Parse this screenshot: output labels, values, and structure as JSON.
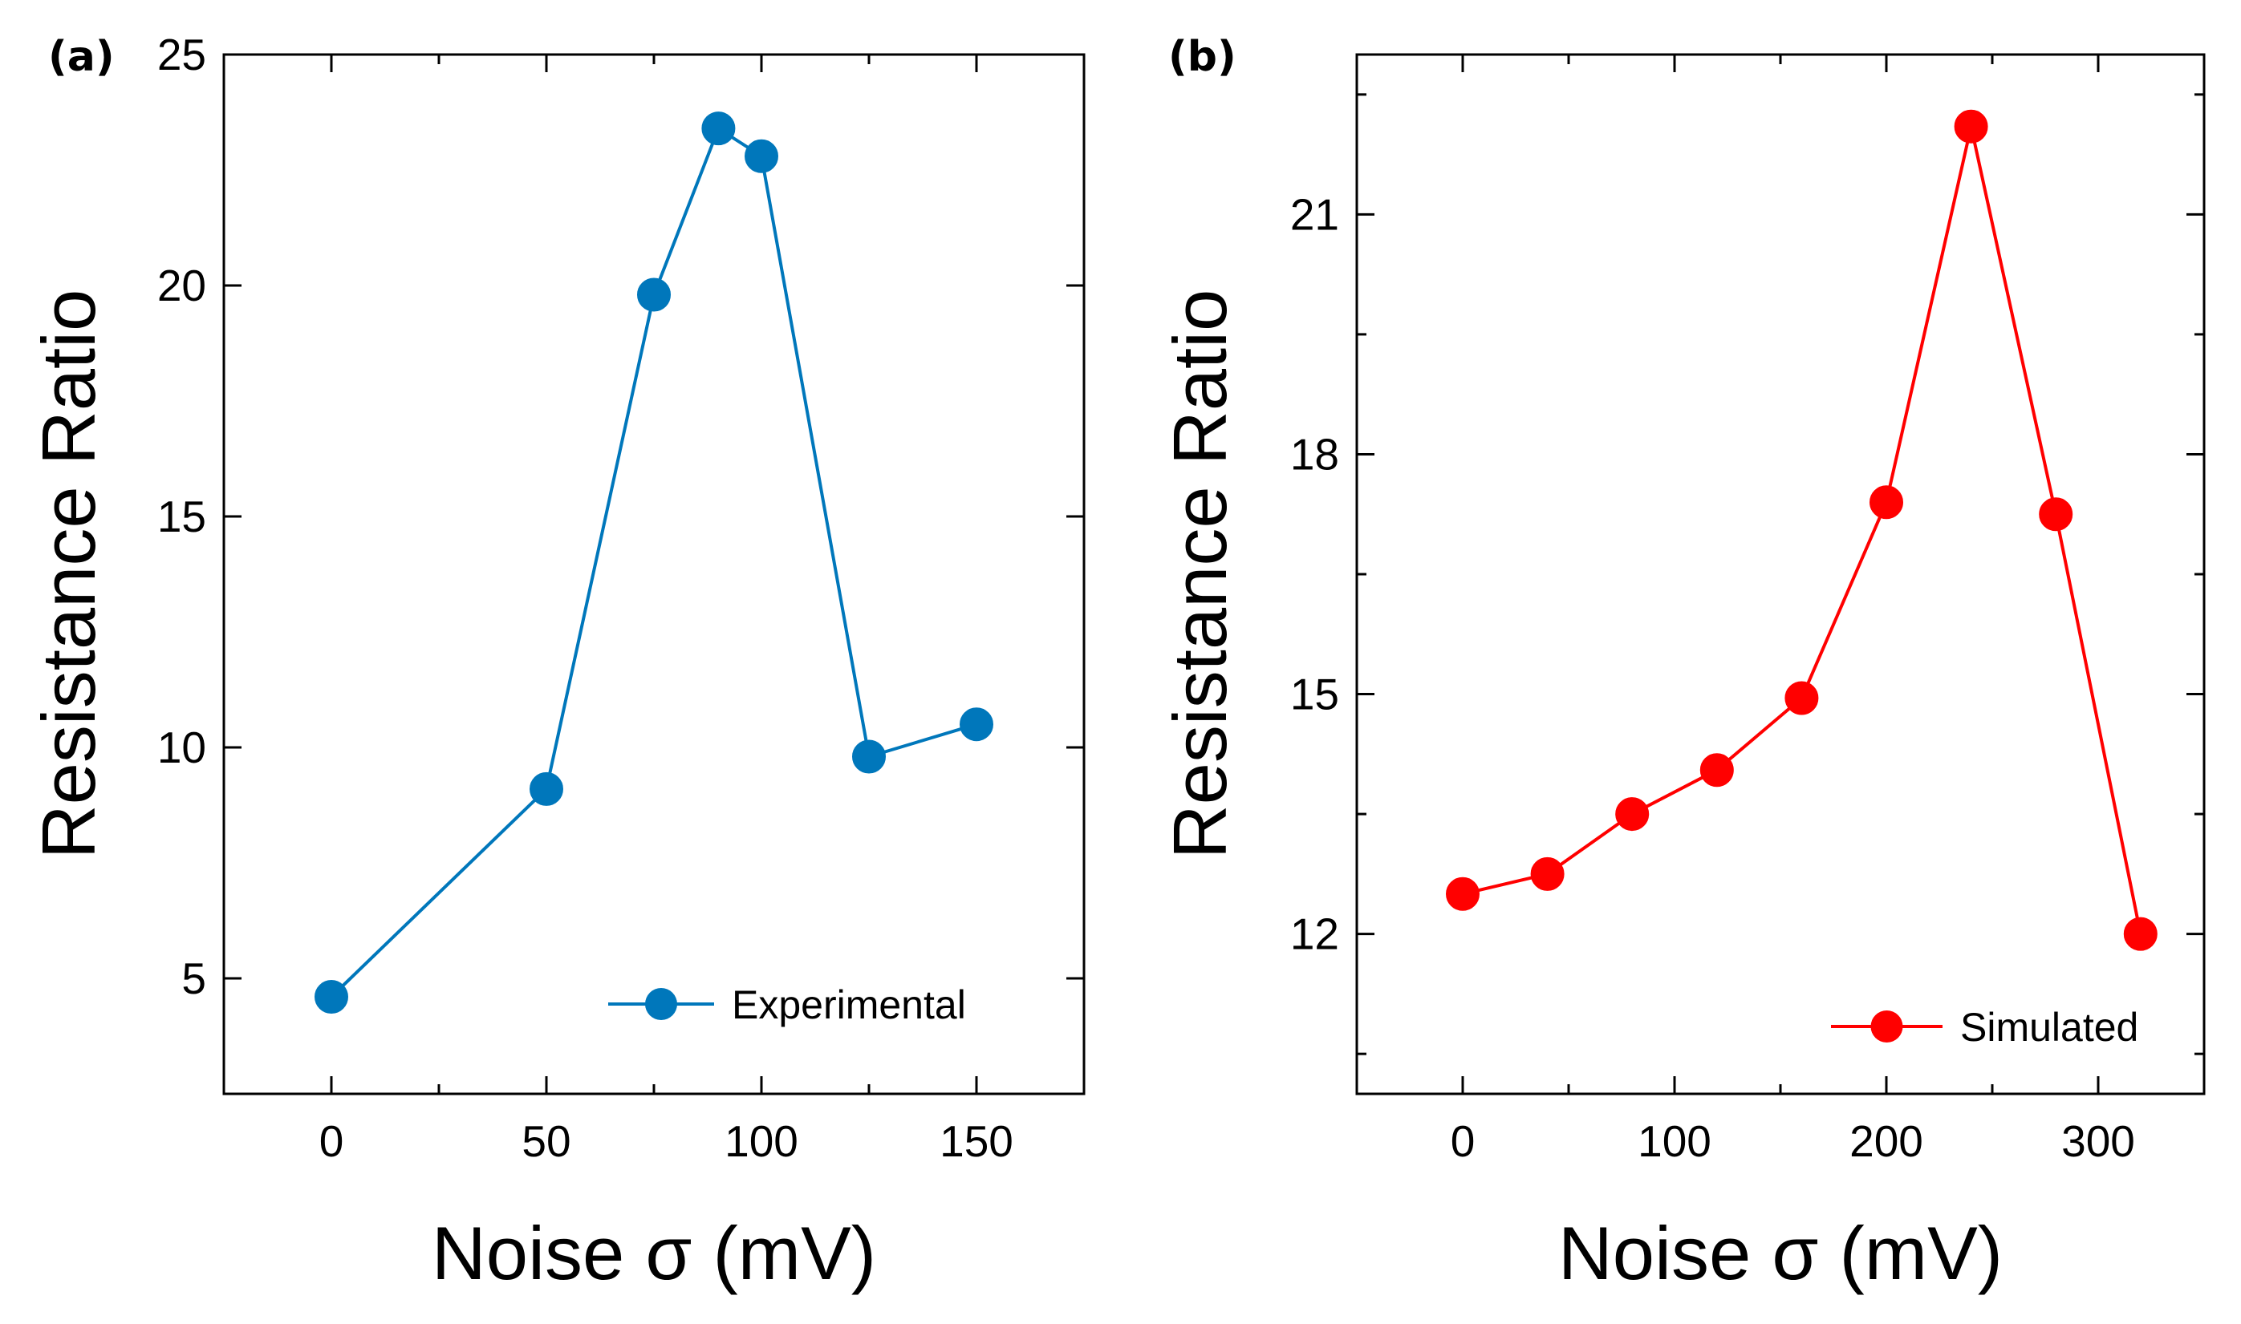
{
  "figure": {
    "panels": [
      "(a)",
      "(b)"
    ]
  },
  "chart_data": [
    {
      "panel_label": "(a)",
      "type": "line",
      "title": "",
      "xlabel": "Noise σ (mV)",
      "ylabel": "Resistance Ratio",
      "xlim": [
        -25,
        175
      ],
      "ylim": [
        2.5,
        25
      ],
      "xticks": [
        0,
        50,
        100,
        150
      ],
      "yticks": [
        5,
        10,
        15,
        20,
        25
      ],
      "xtick_labels": [
        "0",
        "50",
        "100",
        "150"
      ],
      "ytick_labels": [
        "5",
        "10",
        "15",
        "20",
        "25"
      ],
      "grid": false,
      "legend": "bottom-right",
      "color": "#0077bb",
      "series": [
        {
          "name": "Experimental",
          "x": [
            0,
            50,
            75,
            90,
            100,
            125,
            150
          ],
          "y": [
            4.6,
            9.1,
            19.8,
            23.4,
            22.8,
            9.8,
            10.5
          ]
        }
      ]
    },
    {
      "panel_label": "(b)",
      "type": "line",
      "title": "",
      "xlabel": "Noise σ (mV)",
      "ylabel": "Resistance Ratio",
      "xlim": [
        -50,
        350
      ],
      "ylim": [
        10.0,
        23.0
      ],
      "xticks": [
        0,
        100,
        200,
        300
      ],
      "yticks": [
        12,
        15,
        18,
        21
      ],
      "xtick_labels": [
        "0",
        "100",
        "200",
        "300"
      ],
      "ytick_labels": [
        "12",
        "15",
        "18",
        "21"
      ],
      "grid": false,
      "legend": "bottom-right",
      "color": "#ff0000",
      "series": [
        {
          "name": "Simulated",
          "x": [
            0,
            40,
            80,
            120,
            160,
            200,
            240,
            280,
            320
          ],
          "y": [
            12.5,
            12.75,
            13.5,
            14.05,
            14.95,
            17.4,
            22.1,
            17.25,
            12.0
          ]
        }
      ]
    }
  ]
}
